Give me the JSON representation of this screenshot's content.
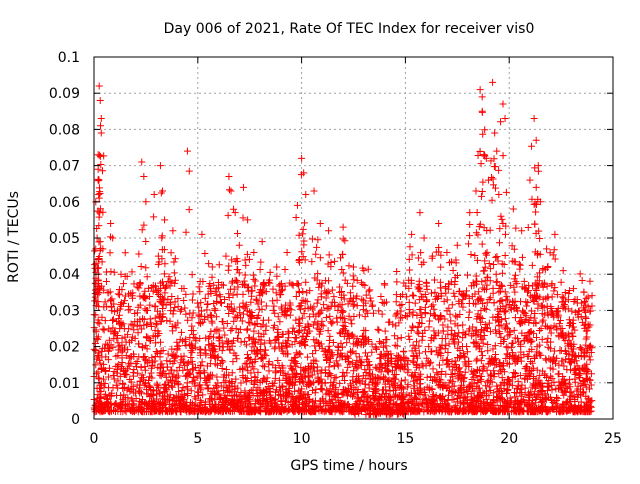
{
  "chart_data": {
    "type": "scatter",
    "title": "Day 006 of 2021, Rate Of TEC Index for receiver vis0",
    "xlabel": "GPS time / hours",
    "ylabel": "ROTI / TECUs",
    "xlim": [
      0,
      25
    ],
    "ylim": [
      0,
      0.1
    ],
    "x_ticks": [
      0,
      5,
      10,
      15,
      20,
      25
    ],
    "x_tick_labels": [
      "0",
      "5",
      "10",
      "15",
      "20",
      "25"
    ],
    "y_ticks": [
      0,
      0.01,
      0.02,
      0.03,
      0.04,
      0.05,
      0.06,
      0.07,
      0.08,
      0.09,
      0.1
    ],
    "y_tick_labels": [
      "0",
      "0.01",
      "0.02",
      "0.03",
      "0.04",
      "0.05",
      "0.06",
      "0.07",
      "0.08",
      "0.09",
      "0.1"
    ],
    "grid": true,
    "marker": "+",
    "series": [
      {
        "name": "ROTI",
        "color": "#ff0000",
        "time_range_hours": [
          0,
          24
        ],
        "typical_range": [
          0.002,
          0.03
        ],
        "points": [
          [
            0.25,
            0.092
          ],
          [
            0.3,
            0.088
          ],
          [
            0.35,
            0.083
          ],
          [
            0.35,
            0.079
          ],
          [
            0.2,
            0.073
          ],
          [
            0.2,
            0.069
          ],
          [
            0.25,
            0.061
          ],
          [
            0.15,
            0.05
          ],
          [
            0.3,
            0.049
          ],
          [
            0.1,
            0.043
          ],
          [
            0.6,
            0.038
          ],
          [
            0.8,
            0.054
          ],
          [
            0.9,
            0.05
          ],
          [
            1.3,
            0.04
          ],
          [
            2.3,
            0.071
          ],
          [
            2.4,
            0.067
          ],
          [
            2.5,
            0.06
          ],
          [
            2.9,
            0.062
          ],
          [
            3.2,
            0.07
          ],
          [
            3.3,
            0.063
          ],
          [
            3.4,
            0.055
          ],
          [
            3.1,
            0.045
          ],
          [
            3.8,
            0.052
          ],
          [
            4.5,
            0.074
          ],
          [
            5.2,
            0.051
          ],
          [
            5.7,
            0.042
          ],
          [
            6.5,
            0.067
          ],
          [
            6.6,
            0.063
          ],
          [
            6.8,
            0.057
          ],
          [
            7.0,
            0.048
          ],
          [
            7.2,
            0.064
          ],
          [
            7.4,
            0.055
          ],
          [
            7.7,
            0.046
          ],
          [
            8.1,
            0.049
          ],
          [
            8.8,
            0.042
          ],
          [
            9.3,
            0.046
          ],
          [
            9.8,
            0.059
          ],
          [
            10.0,
            0.072
          ],
          [
            10.1,
            0.068
          ],
          [
            10.2,
            0.062
          ],
          [
            10.6,
            0.063
          ],
          [
            10.9,
            0.054
          ],
          [
            11.3,
            0.052
          ],
          [
            12.0,
            0.053
          ],
          [
            12.5,
            0.042
          ],
          [
            13.0,
            0.041
          ],
          [
            14.0,
            0.037
          ],
          [
            15.3,
            0.051
          ],
          [
            15.7,
            0.057
          ],
          [
            15.9,
            0.05
          ],
          [
            16.3,
            0.045
          ],
          [
            16.6,
            0.054
          ],
          [
            17.0,
            0.046
          ],
          [
            17.5,
            0.048
          ],
          [
            18.1,
            0.057
          ],
          [
            18.4,
            0.063
          ],
          [
            18.6,
            0.091
          ],
          [
            18.7,
            0.089
          ],
          [
            18.7,
            0.085
          ],
          [
            18.9,
            0.072
          ],
          [
            19.0,
            0.066
          ],
          [
            19.2,
            0.093
          ],
          [
            19.3,
            0.079
          ],
          [
            19.4,
            0.074
          ],
          [
            19.5,
            0.062
          ],
          [
            19.6,
            0.056
          ],
          [
            19.7,
            0.087
          ],
          [
            19.8,
            0.083
          ],
          [
            19.7,
            0.054
          ],
          [
            20.2,
            0.058
          ],
          [
            20.6,
            0.052
          ],
          [
            21.0,
            0.066
          ],
          [
            21.2,
            0.083
          ],
          [
            21.3,
            0.077
          ],
          [
            21.4,
            0.07
          ],
          [
            21.3,
            0.064
          ],
          [
            21.5,
            0.06
          ],
          [
            21.8,
            0.047
          ],
          [
            22.2,
            0.051
          ],
          [
            22.6,
            0.041
          ],
          [
            23.1,
            0.036
          ],
          [
            23.6,
            0.035
          ],
          [
            23.8,
            0.031
          ]
        ]
      }
    ]
  }
}
